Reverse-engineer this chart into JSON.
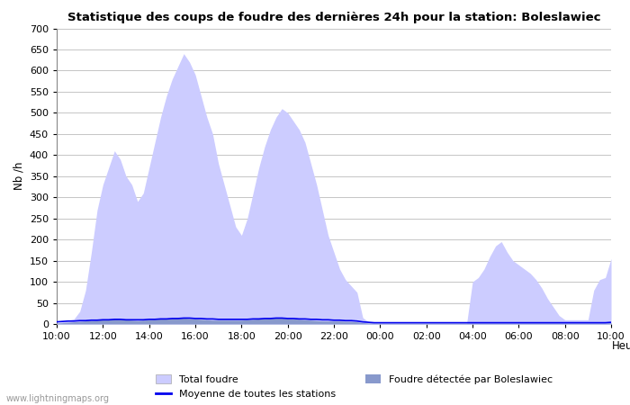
{
  "title": "Statistique des coups de foudre des dernières 24h pour la station: Boleslawiec",
  "xlabel": "Heure",
  "ylabel": "Nb /h",
  "xlim": [
    0,
    24
  ],
  "ylim": [
    0,
    700
  ],
  "yticks": [
    0,
    50,
    100,
    150,
    200,
    250,
    300,
    350,
    400,
    450,
    500,
    550,
    600,
    650,
    700
  ],
  "xtick_labels": [
    "10:00",
    "12:00",
    "14:00",
    "16:00",
    "18:00",
    "20:00",
    "22:00",
    "00:00",
    "02:00",
    "04:00",
    "06:00",
    "08:00",
    "10:00"
  ],
  "xtick_positions": [
    0,
    2,
    4,
    6,
    8,
    10,
    12,
    14,
    16,
    18,
    20,
    22,
    24
  ],
  "total_foudre_color": "#ccccff",
  "detected_color": "#8899cc",
  "moyenne_color": "#0000ee",
  "background_color": "#ffffff",
  "watermark": "www.lightningmaps.org",
  "legend_labels": [
    "Total foudre",
    "Moyenne de toutes les stations",
    "Foudre détectée par Boleslawiec"
  ],
  "total_x": [
    0.0,
    0.25,
    0.5,
    0.75,
    1.0,
    1.25,
    1.5,
    1.75,
    2.0,
    2.25,
    2.5,
    2.75,
    3.0,
    3.25,
    3.5,
    3.75,
    4.0,
    4.25,
    4.5,
    4.75,
    5.0,
    5.25,
    5.5,
    5.75,
    6.0,
    6.25,
    6.5,
    6.75,
    7.0,
    7.25,
    7.5,
    7.75,
    8.0,
    8.25,
    8.5,
    8.75,
    9.0,
    9.25,
    9.5,
    9.75,
    10.0,
    10.25,
    10.5,
    10.75,
    11.0,
    11.25,
    11.5,
    11.75,
    12.0,
    12.25,
    12.5,
    12.75,
    13.0,
    13.25,
    13.5,
    13.75,
    14.0,
    14.25,
    14.5,
    14.75,
    15.0,
    15.25,
    15.5,
    15.75,
    16.0,
    16.25,
    16.5,
    16.75,
    17.0,
    17.25,
    17.5,
    17.75,
    18.0,
    18.25,
    18.5,
    18.75,
    19.0,
    19.25,
    19.5,
    19.75,
    20.0,
    20.25,
    20.5,
    20.75,
    21.0,
    21.25,
    21.5,
    21.75,
    22.0,
    22.25,
    22.5,
    22.75,
    23.0,
    23.25,
    23.5,
    23.75,
    24.0
  ],
  "total_y": [
    2,
    5,
    8,
    12,
    30,
    80,
    170,
    270,
    330,
    370,
    410,
    390,
    350,
    330,
    290,
    310,
    370,
    430,
    490,
    540,
    580,
    610,
    640,
    620,
    590,
    540,
    490,
    450,
    380,
    330,
    280,
    230,
    210,
    250,
    310,
    370,
    420,
    460,
    490,
    510,
    500,
    480,
    460,
    430,
    380,
    330,
    270,
    210,
    170,
    130,
    105,
    90,
    75,
    15,
    5,
    2,
    2,
    2,
    2,
    2,
    2,
    2,
    2,
    2,
    2,
    2,
    2,
    2,
    2,
    2,
    2,
    2,
    100,
    110,
    130,
    160,
    185,
    195,
    170,
    150,
    140,
    130,
    120,
    105,
    85,
    60,
    40,
    20,
    10,
    10,
    10,
    10,
    10,
    80,
    105,
    110,
    155
  ],
  "detected_x": [
    0.0,
    0.25,
    0.5,
    0.75,
    1.0,
    1.25,
    1.5,
    1.75,
    2.0,
    2.25,
    2.5,
    2.75,
    3.0,
    3.25,
    3.5,
    3.75,
    4.0,
    4.25,
    4.5,
    4.75,
    5.0,
    5.25,
    5.5,
    5.75,
    6.0,
    6.25,
    6.5,
    6.75,
    7.0,
    7.25,
    7.5,
    7.75,
    8.0,
    8.25,
    8.5,
    8.75,
    9.0,
    9.25,
    9.5,
    9.75,
    10.0,
    10.25,
    10.5,
    10.75,
    11.0,
    11.25,
    11.5,
    11.75,
    12.0,
    12.25,
    12.5,
    12.75,
    13.0,
    13.25,
    13.5,
    13.75,
    14.0,
    14.25,
    14.5,
    14.75,
    15.0,
    15.25,
    15.5,
    15.75,
    16.0,
    16.25,
    16.5,
    16.75,
    17.0,
    17.25,
    17.5,
    17.75,
    18.0,
    18.25,
    18.5,
    18.75,
    19.0,
    19.25,
    19.5,
    19.75,
    20.0,
    20.25,
    20.5,
    20.75,
    21.0,
    21.25,
    21.5,
    21.75,
    22.0,
    22.25,
    22.5,
    22.75,
    23.0,
    23.25,
    23.5,
    23.75,
    24.0
  ],
  "detected_y": [
    2,
    3,
    4,
    5,
    6,
    7,
    8,
    9,
    10,
    11,
    12,
    11,
    10,
    9,
    8,
    9,
    10,
    11,
    12,
    13,
    14,
    15,
    14,
    13,
    12,
    11,
    10,
    9,
    9,
    9,
    9,
    9,
    9,
    10,
    11,
    12,
    13,
    14,
    15,
    14,
    13,
    12,
    11,
    10,
    9,
    8,
    7,
    7,
    7,
    7,
    6,
    6,
    5,
    3,
    2,
    2,
    2,
    2,
    2,
    2,
    2,
    2,
    2,
    2,
    2,
    2,
    2,
    2,
    2,
    2,
    2,
    2,
    2,
    2,
    2,
    2,
    2,
    2,
    2,
    2,
    2,
    2,
    2,
    2,
    2,
    2,
    2,
    2,
    2,
    2,
    2,
    2,
    2,
    2,
    2,
    2,
    3
  ],
  "moyenne_x": [
    0.0,
    0.25,
    0.5,
    0.75,
    1.0,
    1.25,
    1.5,
    1.75,
    2.0,
    2.25,
    2.5,
    2.75,
    3.0,
    3.25,
    3.5,
    3.75,
    4.0,
    4.25,
    4.5,
    4.75,
    5.0,
    5.25,
    5.5,
    5.75,
    6.0,
    6.25,
    6.5,
    6.75,
    7.0,
    7.25,
    7.5,
    7.75,
    8.0,
    8.25,
    8.5,
    8.75,
    9.0,
    9.25,
    9.5,
    9.75,
    10.0,
    10.25,
    10.5,
    10.75,
    11.0,
    11.25,
    11.5,
    11.75,
    12.0,
    12.25,
    12.5,
    12.75,
    13.0,
    13.25,
    13.5,
    13.75,
    14.0,
    14.25,
    14.5,
    14.75,
    15.0,
    15.25,
    15.5,
    15.75,
    16.0,
    16.25,
    16.5,
    16.75,
    17.0,
    17.25,
    17.5,
    17.75,
    18.0,
    18.25,
    18.5,
    18.75,
    19.0,
    19.25,
    19.5,
    19.75,
    20.0,
    20.25,
    20.5,
    20.75,
    21.0,
    21.25,
    21.5,
    21.75,
    22.0,
    22.25,
    22.5,
    22.75,
    23.0,
    23.25,
    23.5,
    23.75,
    24.0
  ],
  "moyenne_y": [
    5,
    6,
    7,
    7,
    8,
    8,
    9,
    9,
    10,
    10,
    11,
    11,
    10,
    10,
    10,
    10,
    11,
    11,
    12,
    12,
    13,
    13,
    14,
    14,
    13,
    13,
    12,
    12,
    11,
    11,
    11,
    11,
    11,
    11,
    12,
    12,
    13,
    13,
    14,
    14,
    13,
    13,
    12,
    12,
    11,
    11,
    10,
    10,
    9,
    9,
    8,
    8,
    7,
    5,
    4,
    3,
    3,
    3,
    3,
    3,
    3,
    3,
    3,
    3,
    3,
    3,
    3,
    3,
    3,
    3,
    3,
    3,
    3,
    3,
    3,
    3,
    3,
    3,
    3,
    3,
    3,
    3,
    3,
    3,
    3,
    3,
    3,
    3,
    3,
    3,
    3,
    3,
    3,
    3,
    3,
    3,
    4
  ]
}
